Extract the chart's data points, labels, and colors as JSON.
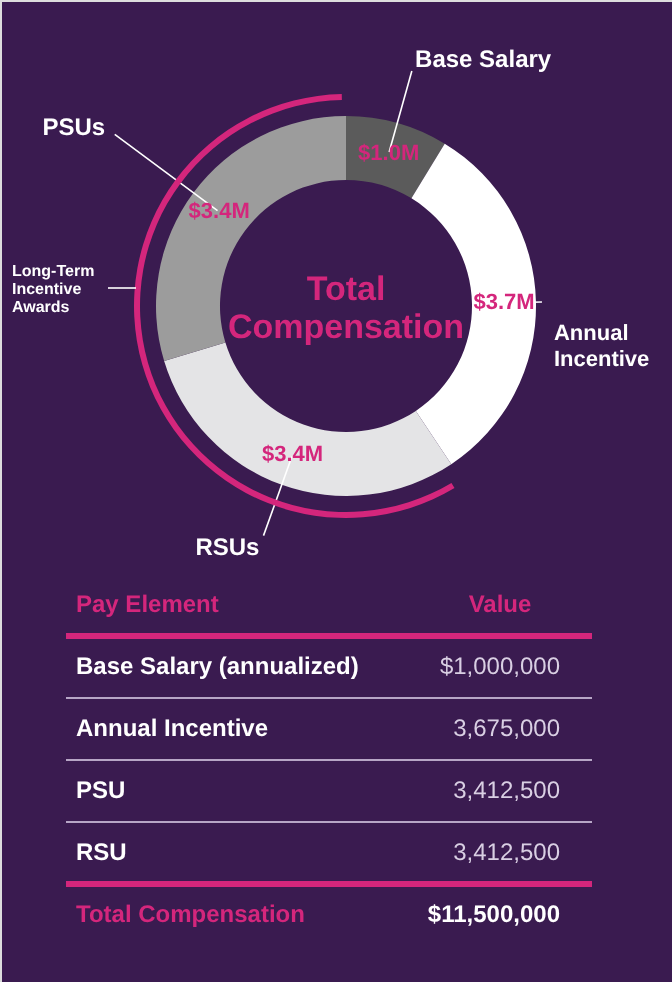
{
  "chart_data": {
    "type": "donut",
    "title": "Total Compensation",
    "categories": [
      "Base Salary",
      "Annual Incentive",
      "RSUs",
      "PSUs"
    ],
    "values": [
      1000000,
      3675000,
      3412500,
      3412500
    ],
    "value_labels": [
      "$1.0M",
      "$3.7M",
      "$3.4M",
      "$3.4M"
    ],
    "colors": [
      "#5b5b5b",
      "#ffffff",
      "#e4e4e6",
      "#9c9c9c"
    ],
    "annotations": [
      "Long-Term Incentive Awards",
      "Pay Element",
      "Value",
      "Base Salary (annualized)",
      "$1,000,000",
      "Annual Incentive",
      "3,675,000",
      "PSU",
      "3,412,500",
      "RSU",
      "3,412,500",
      "Total Compensation",
      "$11,500,000"
    ]
  }
}
